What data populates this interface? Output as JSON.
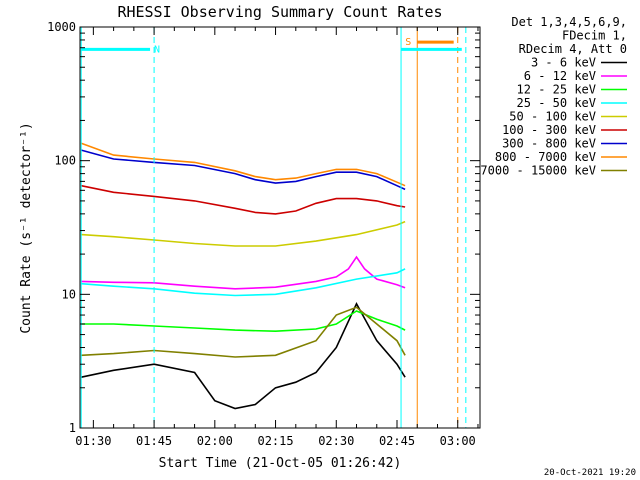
{
  "chart_data": {
    "type": "line",
    "title": "RHESSI Observing Summary Count Rates",
    "xlabel": "Start Time (21-Oct-05 01:26:42)",
    "ylabel": "Count Rate (s⁻¹ detector⁻¹)",
    "xlim": [
      "01:26:42",
      "03:05:30"
    ],
    "ylim": [
      1,
      1000
    ],
    "yscale": "log",
    "x_ticks": [
      "01:30",
      "01:45",
      "02:00",
      "02:15",
      "02:30",
      "02:45",
      "03:00"
    ],
    "y_ticks": [
      "1",
      "10",
      "100",
      "1000"
    ],
    "grid": false,
    "legend_position": "right",
    "info_lines": [
      "Det 1,3,4,5,6,9,",
      "FDecim 1,",
      "RDecim 4, Att 0"
    ],
    "date_stamp": "20-Oct-2021 19:20",
    "series": [
      {
        "name": "3 - 6 keV",
        "color": "#000000",
        "times": [
          "01:27",
          "01:35",
          "01:45",
          "01:55",
          "02:00",
          "02:05",
          "02:10",
          "02:15",
          "02:20",
          "02:25",
          "02:30",
          "02:35",
          "02:40",
          "02:45",
          "02:47"
        ],
        "values": [
          2.4,
          2.7,
          3.0,
          2.6,
          1.6,
          1.4,
          1.5,
          2.0,
          2.2,
          2.6,
          4.0,
          8.5,
          4.5,
          3.0,
          2.4
        ]
      },
      {
        "name": "6 - 12 keV",
        "color": "#ff00ff",
        "times": [
          "01:27",
          "01:35",
          "01:45",
          "01:55",
          "02:05",
          "02:15",
          "02:25",
          "02:30",
          "02:33",
          "02:35",
          "02:37",
          "02:40",
          "02:45",
          "02:47"
        ],
        "values": [
          12.5,
          12.3,
          12.2,
          11.5,
          11.0,
          11.3,
          12.5,
          13.5,
          15.5,
          19.0,
          15.5,
          13.0,
          11.8,
          11.2
        ]
      },
      {
        "name": "12 - 25 keV",
        "color": "#00ff00",
        "times": [
          "01:27",
          "01:35",
          "01:45",
          "01:55",
          "02:05",
          "02:15",
          "02:25",
          "02:30",
          "02:35",
          "02:40",
          "02:45",
          "02:47"
        ],
        "values": [
          6.0,
          6.0,
          5.8,
          5.6,
          5.4,
          5.3,
          5.5,
          6.0,
          7.5,
          6.5,
          5.8,
          5.4
        ]
      },
      {
        "name": "25 - 50 keV",
        "color": "#00ffff",
        "times": [
          "01:27",
          "01:35",
          "01:45",
          "01:55",
          "02:05",
          "02:15",
          "02:25",
          "02:35",
          "02:45",
          "02:47"
        ],
        "values": [
          12.0,
          11.5,
          11.0,
          10.2,
          9.8,
          10.0,
          11.2,
          13.0,
          14.5,
          15.5
        ]
      },
      {
        "name": "50 - 100 keV",
        "color": "#cccc00",
        "times": [
          "01:27",
          "01:35",
          "01:45",
          "01:55",
          "02:05",
          "02:15",
          "02:25",
          "02:35",
          "02:45",
          "02:47"
        ],
        "values": [
          28.0,
          27.0,
          25.5,
          24.0,
          23.0,
          23.0,
          25.0,
          28.0,
          33.0,
          35.0
        ]
      },
      {
        "name": "100 - 300 keV",
        "color": "#cc0000",
        "times": [
          "01:27",
          "01:35",
          "01:45",
          "01:55",
          "02:05",
          "02:10",
          "02:15",
          "02:20",
          "02:25",
          "02:30",
          "02:35",
          "02:40",
          "02:45",
          "02:47"
        ],
        "values": [
          65.0,
          58.0,
          54.0,
          50.0,
          44.0,
          41.0,
          40.0,
          42.0,
          48.0,
          52.0,
          52.0,
          50.0,
          46.0,
          45.0
        ]
      },
      {
        "name": "300 - 800 keV",
        "color": "#0000cc",
        "times": [
          "01:27",
          "01:35",
          "01:45",
          "01:55",
          "02:05",
          "02:10",
          "02:15",
          "02:20",
          "02:25",
          "02:30",
          "02:35",
          "02:40",
          "02:45",
          "02:47"
        ],
        "values": [
          120.0,
          103.0,
          97.0,
          92.0,
          80.0,
          72.0,
          68.0,
          70.0,
          76.0,
          82.0,
          82.0,
          76.0,
          65.0,
          61.0
        ]
      },
      {
        "name": "800 - 7000 keV",
        "color": "#ff8800",
        "times": [
          "01:27",
          "01:35",
          "01:45",
          "01:55",
          "02:05",
          "02:10",
          "02:15",
          "02:20",
          "02:25",
          "02:30",
          "02:35",
          "02:40",
          "02:45",
          "02:47"
        ],
        "values": [
          135.0,
          110.0,
          103.0,
          97.0,
          84.0,
          76.0,
          72.0,
          74.0,
          80.0,
          86.0,
          86.0,
          80.0,
          69.0,
          65.0
        ]
      },
      {
        "name": "7000 - 15000 keV",
        "color": "#808000",
        "times": [
          "01:27",
          "01:35",
          "01:45",
          "01:55",
          "02:05",
          "02:15",
          "02:25",
          "02:30",
          "02:35",
          "02:40",
          "02:45",
          "02:47"
        ],
        "values": [
          3.5,
          3.6,
          3.8,
          3.6,
          3.4,
          3.5,
          4.5,
          7.0,
          8.0,
          6.0,
          4.5,
          3.5
        ]
      }
    ],
    "markers": [
      {
        "label": "N",
        "color": "#00ffff",
        "start": "01:27",
        "end": "01:44",
        "level": 680
      },
      {
        "label": "S",
        "color": "#ff8800",
        "start": "02:50",
        "end": "02:59",
        "level": 770
      },
      {
        "label": "",
        "color": "#00ffff",
        "start": "02:46",
        "end": "03:01",
        "level": 680
      }
    ],
    "vlines": [
      {
        "time": "01:27",
        "color": "#00ffff",
        "style": "solid"
      },
      {
        "time": "01:45",
        "color": "#00ffff",
        "style": "dashed"
      },
      {
        "time": "02:46",
        "color": "#00ffff",
        "style": "solid"
      },
      {
        "time": "02:50",
        "color": "#ff8800",
        "style": "solid"
      },
      {
        "time": "03:00",
        "color": "#ff8800",
        "style": "dashed"
      },
      {
        "time": "03:02",
        "color": "#00ffff",
        "style": "dashed"
      }
    ]
  }
}
